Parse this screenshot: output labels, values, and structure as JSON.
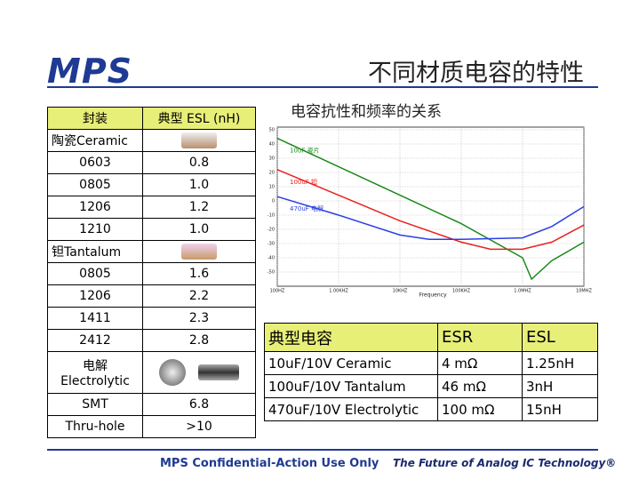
{
  "header": {
    "logo": "MPS",
    "title": "不同材质电容的特性"
  },
  "esl_table": {
    "header": [
      "封装",
      "典型 ESL (nH)"
    ],
    "rows": [
      {
        "package": "陶瓷Ceramic"
      },
      {
        "package": "0603",
        "esl": "0.8"
      },
      {
        "package": "0805",
        "esl": "1.0"
      },
      {
        "package": "1206",
        "esl": "1.2"
      },
      {
        "package": "1210",
        "esl": "1.0"
      },
      {
        "package": "钽Tantalum"
      },
      {
        "package": "0805",
        "esl": "1.6"
      },
      {
        "package": "1206",
        "esl": "2.2"
      },
      {
        "package": "1411",
        "esl": "2.3"
      },
      {
        "package": "2412",
        "esl": "2.8"
      },
      {
        "package": "电解",
        "package_en": "Electrolytic"
      },
      {
        "package": "SMT",
        "esl": "6.8"
      },
      {
        "package": "Thru-hole",
        "esl": ">10"
      }
    ]
  },
  "chart_data": {
    "type": "line",
    "title": "电容抗性和频率的关系",
    "xlabel": "Frequency",
    "xscale": "log",
    "xlim": [
      100,
      10000000
    ],
    "xticks": [
      {
        "value": 100,
        "label": "100HZ"
      },
      {
        "value": 1000,
        "label": "1.00KHZ"
      },
      {
        "value": 10000,
        "label": "10KHZ"
      },
      {
        "value": 100000,
        "label": "100KHZ"
      },
      {
        "value": 1000000,
        "label": "1.0MHZ"
      },
      {
        "value": 10000000,
        "label": "10MHZ"
      }
    ],
    "ylim": [
      -60,
      50
    ],
    "yticks": [
      50,
      40,
      30,
      20,
      10,
      0,
      -10,
      -20,
      -30,
      -40,
      -50
    ],
    "grid": true,
    "series": [
      {
        "name": "10uF 瓷片",
        "color": "#1a8a1a",
        "x": [
          100,
          1000,
          10000,
          100000,
          1000000,
          1400000,
          3000000,
          10000000
        ],
        "values": [
          44,
          24,
          4,
          -16,
          -40,
          -55,
          -42,
          -29
        ]
      },
      {
        "name": "100uF 钽",
        "color": "#e8221c",
        "x": [
          100,
          1000,
          10000,
          100000,
          300000,
          1000000,
          3000000,
          10000000
        ],
        "values": [
          22,
          4,
          -14,
          -29,
          -34,
          -34,
          -29,
          -17
        ]
      },
      {
        "name": "470uF 电解",
        "color": "#2a3fe0",
        "x": [
          100,
          1000,
          10000,
          30000,
          100000,
          1000000,
          3000000,
          10000000
        ],
        "values": [
          3,
          -10,
          -24,
          -27,
          -27,
          -26,
          -18,
          -4
        ]
      }
    ]
  },
  "esr_table": {
    "header": [
      "典型电容",
      "ESR",
      "ESL"
    ],
    "rows": [
      [
        "10uF/10V Ceramic",
        "4 mΩ",
        "1.25nH"
      ],
      [
        "100uF/10V Tantalum",
        "46 mΩ",
        "3nH"
      ],
      [
        "470uF/10V Electrolytic",
        "100 mΩ",
        "15nH"
      ]
    ]
  },
  "footer": {
    "left": "MPS Confidential-Action Use Only",
    "right": "The Future of Analog IC Technology®"
  }
}
